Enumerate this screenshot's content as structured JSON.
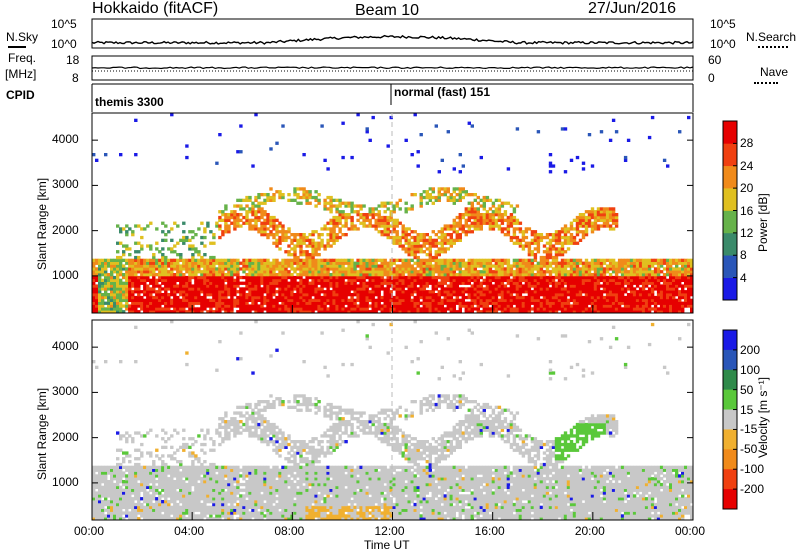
{
  "header": {
    "station": "Hokkaido (fitACF)",
    "beam": "Beam 10",
    "date": "27/Jun/2016"
  },
  "left_labels": {
    "nsky": "N.Sky",
    "freq": "Freq.",
    "mhz": "[MHz]",
    "cpid": "CPID"
  },
  "right_labels": {
    "nsearch": "N.Search",
    "nave": "Nave"
  },
  "noise_axis": {
    "top": "10^5",
    "bottom": "10^0"
  },
  "freq_axis": {
    "top": "18",
    "bottom": "8"
  },
  "nave_axis": {
    "top": "60",
    "bottom": "0"
  },
  "cpid": [
    {
      "label": "themis 3300"
    },
    {
      "label": "normal (fast) 151"
    }
  ],
  "colors": {
    "power": [
      "#1a1ae6",
      "#2a56b8",
      "#3a8a6a",
      "#66b24a",
      "#e0c020",
      "#f08a1a",
      "#f04010",
      "#e60000"
    ],
    "velocity": [
      "#1a1ae6",
      "#2a56b8",
      "#2f8a4a",
      "#5ac83a",
      "#c8c8c8",
      "#f0b030",
      "#f08a1a",
      "#f04010",
      "#e60000"
    ],
    "dashed": "#bbbbbb"
  },
  "chart_data": [
    {
      "type": "heatmap",
      "title": "",
      "xlabel": "Time UT",
      "ylabel": "Slant Range [km]",
      "x_ticks": [
        "00:00",
        "04:00",
        "08:00",
        "12:00",
        "16:00",
        "20:00",
        "00:00"
      ],
      "y_ticks": [
        "1000",
        "2000",
        "3000",
        "4000"
      ],
      "xlim": [
        0,
        24
      ],
      "ylim": [
        180,
        4600
      ],
      "colorbar": {
        "label": "Power [dB]",
        "ticks": [
          "4",
          "8",
          "12",
          "16",
          "20",
          "24",
          "28"
        ],
        "range": [
          0,
          32
        ]
      }
    },
    {
      "type": "heatmap",
      "title": "",
      "xlabel": "Time UT",
      "ylabel": "Slant Range [km]",
      "x_ticks": [
        "00:00",
        "04:00",
        "08:00",
        "12:00",
        "16:00",
        "20:00",
        "00:00"
      ],
      "y_ticks": [
        "1000",
        "2000",
        "3000",
        "4000"
      ],
      "xlim": [
        0,
        24
      ],
      "ylim": [
        180,
        4600
      ],
      "colorbar": {
        "label": "Velocity [m s⁻¹]",
        "ticks": [
          "200",
          "100",
          "50",
          "15",
          "-15",
          "-50",
          "-100",
          "-200"
        ]
      }
    }
  ]
}
